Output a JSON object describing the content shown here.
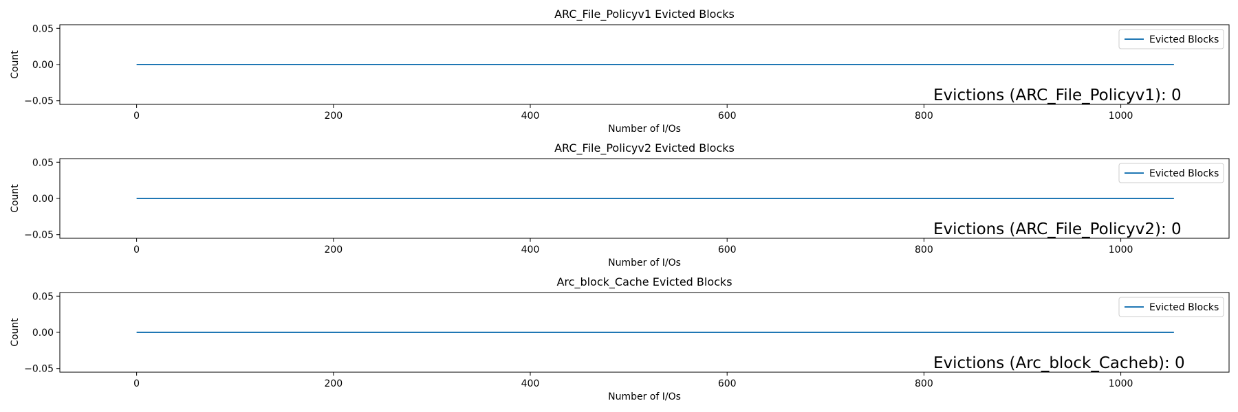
{
  "chart_data": [
    {
      "type": "line",
      "title": "ARC_File_Policyv1 Evicted Blocks",
      "xlabel": "Number of I/Os",
      "ylabel": "Count",
      "xlim": [
        -78,
        1110
      ],
      "ylim": [
        -0.055,
        0.055
      ],
      "x_ticks": [
        0,
        200,
        400,
        600,
        800,
        1000
      ],
      "y_ticks": [
        0.05,
        0.0,
        -0.05
      ],
      "x_tick_labels": [
        "0",
        "200",
        "400",
        "600",
        "800",
        "1000"
      ],
      "y_tick_labels": [
        "0.05",
        "0.00",
        "−0.05"
      ],
      "series": [
        {
          "name": "Evicted Blocks",
          "color": "#1f77b4",
          "x": [
            0,
            1054
          ],
          "values": [
            0,
            0
          ]
        }
      ],
      "legend": {
        "position": "top-right",
        "entries": [
          "Evicted Blocks"
        ]
      },
      "annotation": "Evictions (ARC_File_Policyv1): 0",
      "grid": false
    },
    {
      "type": "line",
      "title": "ARC_File_Policyv2 Evicted Blocks",
      "xlabel": "Number of I/Os",
      "ylabel": "Count",
      "xlim": [
        -78,
        1110
      ],
      "ylim": [
        -0.055,
        0.055
      ],
      "x_ticks": [
        0,
        200,
        400,
        600,
        800,
        1000
      ],
      "y_ticks": [
        0.05,
        0.0,
        -0.05
      ],
      "x_tick_labels": [
        "0",
        "200",
        "400",
        "600",
        "800",
        "1000"
      ],
      "y_tick_labels": [
        "0.05",
        "0.00",
        "−0.05"
      ],
      "series": [
        {
          "name": "Evicted Blocks",
          "color": "#1f77b4",
          "x": [
            0,
            1054
          ],
          "values": [
            0,
            0
          ]
        }
      ],
      "legend": {
        "position": "top-right",
        "entries": [
          "Evicted Blocks"
        ]
      },
      "annotation": "Evictions (ARC_File_Policyv2): 0",
      "grid": false
    },
    {
      "type": "line",
      "title": "Arc_block_Cache Evicted Blocks",
      "xlabel": "Number of I/Os",
      "ylabel": "Count",
      "xlim": [
        -78,
        1110
      ],
      "ylim": [
        -0.055,
        0.055
      ],
      "x_ticks": [
        0,
        200,
        400,
        600,
        800,
        1000
      ],
      "y_ticks": [
        0.05,
        0.0,
        -0.05
      ],
      "x_tick_labels": [
        "0",
        "200",
        "400",
        "600",
        "800",
        "1000"
      ],
      "y_tick_labels": [
        "0.05",
        "0.00",
        "−0.05"
      ],
      "series": [
        {
          "name": "Evicted Blocks",
          "color": "#1f77b4",
          "x": [
            0,
            1054
          ],
          "values": [
            0,
            0
          ]
        }
      ],
      "legend": {
        "position": "top-right",
        "entries": [
          "Evicted Blocks"
        ]
      },
      "annotation": "Evictions (Arc_block_Cacheb): 0",
      "grid": false
    }
  ]
}
